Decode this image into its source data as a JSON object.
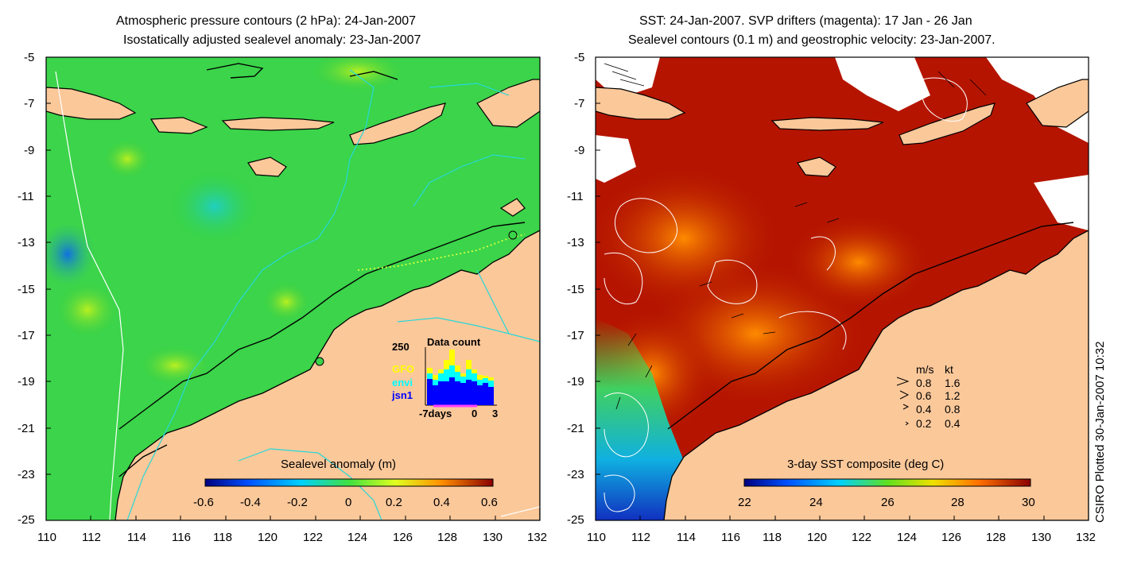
{
  "left_panel": {
    "title_line1": "Atmospheric pressure contours (2 hPa): 24-Jan-2007",
    "title_line2": "Isostatically adjusted sealevel anomaly: 23-Jan-2007",
    "colorbar_label": "Sealevel anomaly (m)",
    "colorbar_ticks": [
      "-0.6",
      "-0.4",
      "-0.2",
      "0",
      "0.2",
      "0.4",
      "0.6"
    ],
    "inset": {
      "title": "Data count",
      "ymax_label": "250",
      "legend": [
        "GFO",
        "envi",
        "jsn1"
      ],
      "legend_colors": [
        "#ffff00",
        "#00ffff",
        "#0000ff"
      ],
      "xlabels": [
        "-7days",
        "0",
        "3"
      ]
    }
  },
  "right_panel": {
    "title_line1": "SST: 24-Jan-2007. SVP drifters (magenta): 17 Jan - 26 Jan",
    "title_line2": "Sealevel contours (0.1 m) and geostrophic velocity: 23-Jan-2007.",
    "colorbar_label": "3-day SST composite (deg C)",
    "colorbar_ticks": [
      "22",
      "24",
      "26",
      "28",
      "30"
    ],
    "velocity_legend": {
      "header_ms": "m/s",
      "header_kt": "kt",
      "rows": [
        {
          "ms": "0.8",
          "kt": "1.6"
        },
        {
          "ms": "0.6",
          "kt": "1.2"
        },
        {
          "ms": "0.4",
          "kt": "0.8"
        },
        {
          "ms": "0.2",
          "kt": "0.4"
        }
      ]
    }
  },
  "axes": {
    "y_ticks": [
      "-5",
      "-7",
      "-9",
      "-11",
      "-13",
      "-15",
      "-17",
      "-19",
      "-21",
      "-23",
      "-25"
    ],
    "x_ticks": [
      "110",
      "112",
      "114",
      "116",
      "118",
      "120",
      "122",
      "124",
      "126",
      "128",
      "130",
      "132"
    ]
  },
  "side_note": "CSIRO Plotted 30-Jan-2007 10:32",
  "colors": {
    "land": "#fbc89a",
    "ocean_anomaly": "#3bd44a",
    "sst_warm": "#b51500",
    "contour_cyan": "#27d8d8"
  }
}
